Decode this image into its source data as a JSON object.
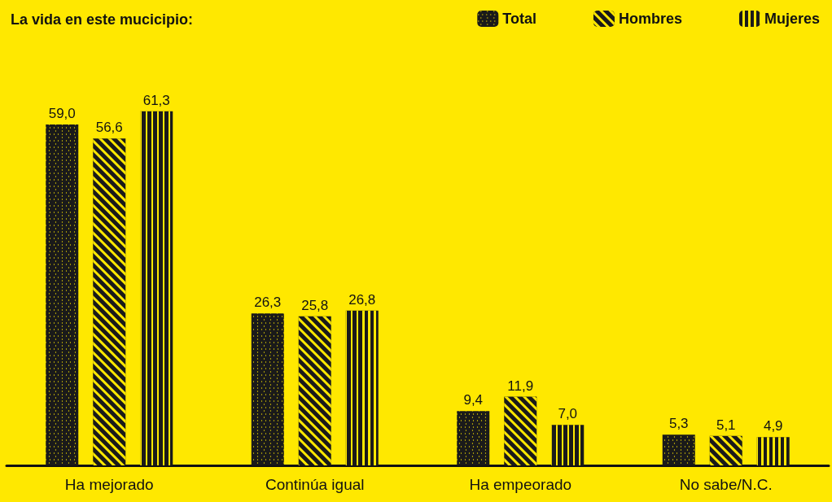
{
  "chart_data": {
    "type": "bar",
    "title": "La vida en este mucicipio:",
    "categories": [
      "Ha mejorado",
      "Continúa igual",
      "Ha empeorado",
      "No sabe/N.C."
    ],
    "series": [
      {
        "name": "Total",
        "color": "#1a1a1a",
        "values": [
          59.0,
          26.3,
          9.4,
          5.3
        ],
        "value_labels": [
          "59,0",
          "26,3",
          "9,4",
          "5,3"
        ]
      },
      {
        "name": "Hombres",
        "color": "#1a1a1a",
        "values": [
          56.6,
          25.8,
          11.9,
          5.1
        ],
        "value_labels": [
          "56,6",
          "25,8",
          "11,9",
          "5,1"
        ]
      },
      {
        "name": "Mujeres",
        "color": "#1a1a1a",
        "values": [
          61.3,
          26.8,
          7.0,
          4.9
        ],
        "value_labels": [
          "61,3",
          "26,8",
          "7,0",
          "4,9"
        ]
      }
    ],
    "tick_labels": "x",
    "grid": false,
    "legend": "top right"
  }
}
